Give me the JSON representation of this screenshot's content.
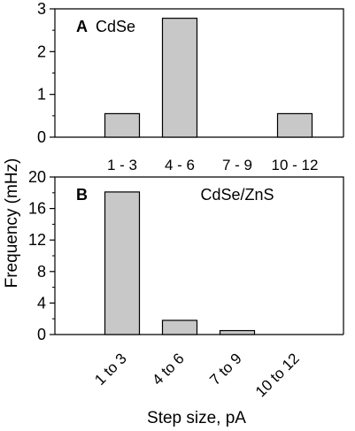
{
  "colors": {
    "bar_fill": "#c8c8c8",
    "bar_stroke": "#000000",
    "axis": "#000000"
  },
  "shared": {
    "ylabel": "Frequency (mHz)",
    "xlabel": "Step size, pA"
  },
  "chart_data": [
    {
      "type": "bar",
      "panel_label": "A",
      "title": "CdSe",
      "categories": [
        "1 - 3",
        "4 - 6",
        "7 - 9",
        "10 - 12"
      ],
      "values": [
        0.55,
        2.78,
        0,
        0.55
      ],
      "ylim": [
        0,
        3
      ],
      "yticks": [
        0,
        1,
        2,
        3
      ],
      "ytick_labels": [
        "0",
        "1",
        "2",
        "3"
      ],
      "minor_ticks": true
    },
    {
      "type": "bar",
      "panel_label": "B",
      "title": "CdSe/ZnS",
      "categories": [
        "1 to 3",
        "4 to 6",
        "7 to 9",
        "10 to 12"
      ],
      "values": [
        18.1,
        1.8,
        0.5,
        0
      ],
      "ylim": [
        0,
        20
      ],
      "yticks": [
        0,
        4,
        8,
        12,
        16,
        20
      ],
      "ytick_labels": [
        "0",
        "4",
        "8",
        "12",
        "16",
        "20"
      ],
      "minor_ticks": true
    }
  ]
}
